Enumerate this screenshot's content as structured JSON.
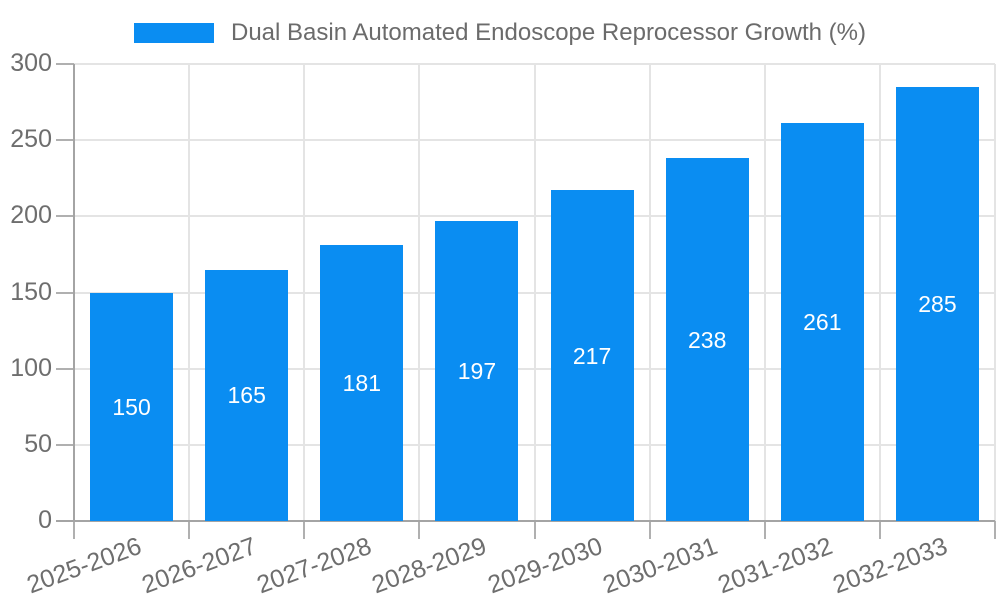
{
  "legend": {
    "label": "Dual Basin Automated Endoscope Reprocessor Growth (%)"
  },
  "chart_data": {
    "type": "bar",
    "title": "Dual Basin Automated Endoscope Reprocessor Growth (%)",
    "categories": [
      "2025-2026",
      "2026-2027",
      "2027-2028",
      "2028-2029",
      "2029-2030",
      "2030-2031",
      "2031-2032",
      "2032-2033"
    ],
    "values": [
      150,
      165,
      181,
      197,
      217,
      238,
      261,
      285
    ],
    "xlabel": "",
    "ylabel": "",
    "ylim": [
      0,
      300
    ],
    "ytick_step": 50,
    "yticks": [
      0,
      50,
      100,
      150,
      200,
      250,
      300
    ],
    "grid": true,
    "legend_position": "top-center",
    "value_labels": "inside-center",
    "x_label_rotation_deg": -20,
    "colors": {
      "bar": "#0a8df2",
      "value_label": "#ffffff",
      "grid": "#e4e4e4",
      "axis": "#a4a4a4",
      "tick": "#b0b0b0",
      "tick_label": "#6e6e6e",
      "legend_text": "#6b6b6b",
      "background": "#ffffff"
    }
  }
}
